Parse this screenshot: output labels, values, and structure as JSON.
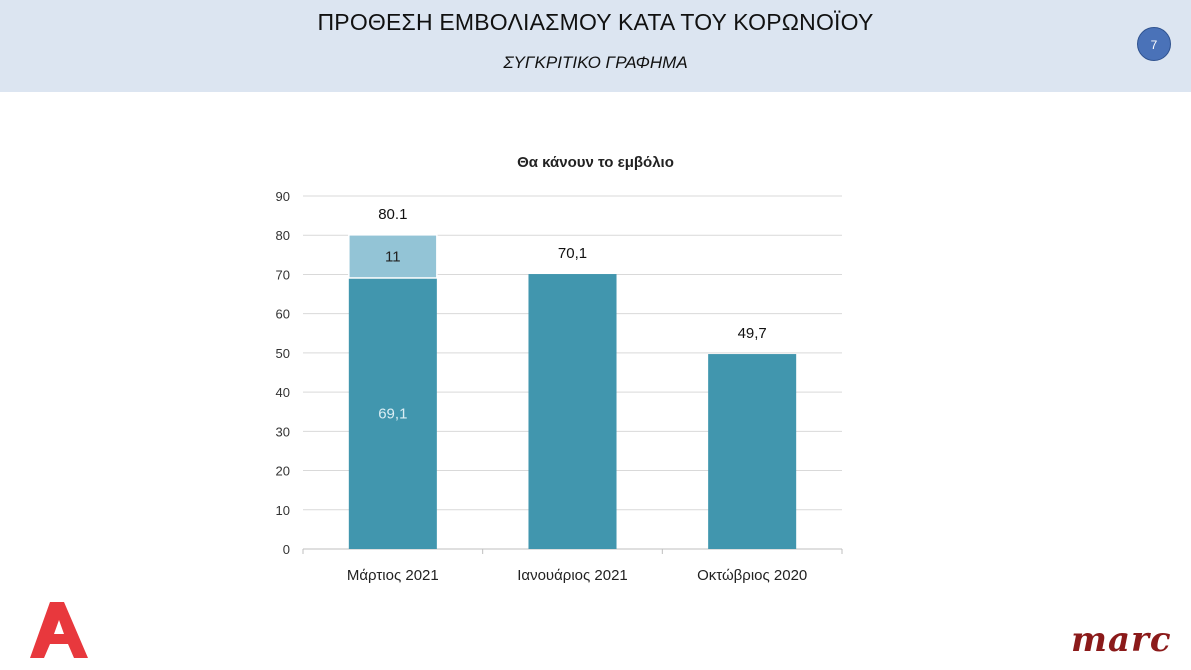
{
  "header": {
    "title": "ΠΡΟΘΕΣΗ ΕΜΒΟΛΙΑΣΜΟΥ ΚΑΤΑ ΤΟΥ ΚΟΡΩΝΟΪΟΥ",
    "subtitle": "ΣΥΓΚΡΙΤΙΚΟ ΓΡΑΦΗΜΑ",
    "page_number": "7"
  },
  "logos": {
    "left": "A",
    "right": "marc"
  },
  "colors": {
    "header_bg": "#dce5f1",
    "bar_primary": "#4196ae",
    "bar_secondary": "#93c4d6",
    "grid": "#d9d9d9"
  },
  "chart_data": {
    "type": "bar",
    "stacked": true,
    "title": "Θα κάνουν το εμβόλιο",
    "xlabel": "",
    "ylabel": "",
    "ylim": [
      0,
      90
    ],
    "ytick_step": 10,
    "grid": true,
    "categories": [
      "Μάρτιος 2021",
      "Ιανουάριος 2021",
      "Οκτώβριος 2020"
    ],
    "series": [
      {
        "values": [
          69.1,
          70.1,
          49.7
        ],
        "labels": [
          "69,1",
          "",
          ""
        ],
        "color": "#4196ae"
      },
      {
        "values": [
          11,
          0,
          0
        ],
        "labels": [
          "11",
          "",
          ""
        ],
        "color": "#93c4d6"
      }
    ],
    "total_labels": [
      "80.1",
      "70,1",
      "49,7"
    ]
  }
}
